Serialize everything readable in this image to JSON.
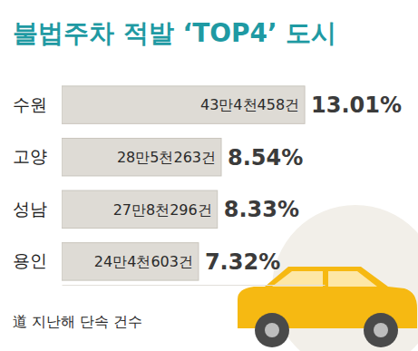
{
  "chart_data": {
    "type": "bar",
    "orientation": "horizontal",
    "title": "불법주차 적발 ‘TOP4’ 도시",
    "categories": [
      "수원",
      "고양",
      "성남",
      "용인"
    ],
    "values": [
      434458,
      285263,
      278296,
      244603
    ],
    "value_labels": [
      "43만4천458건",
      "28만5천263건",
      "27만8천296건",
      "24만4천603건"
    ],
    "shares": [
      13.01,
      8.54,
      8.33,
      7.32
    ],
    "share_labels": [
      "13.01%",
      "8.54%",
      "8.33%",
      "7.32%"
    ],
    "footnote": "道 지난해 단속 건수",
    "color": "#dedbd5",
    "xlim": [
      0,
      470000
    ],
    "xticks": [],
    "tick_labels": "y",
    "grid": false,
    "data_labels": true
  }
}
